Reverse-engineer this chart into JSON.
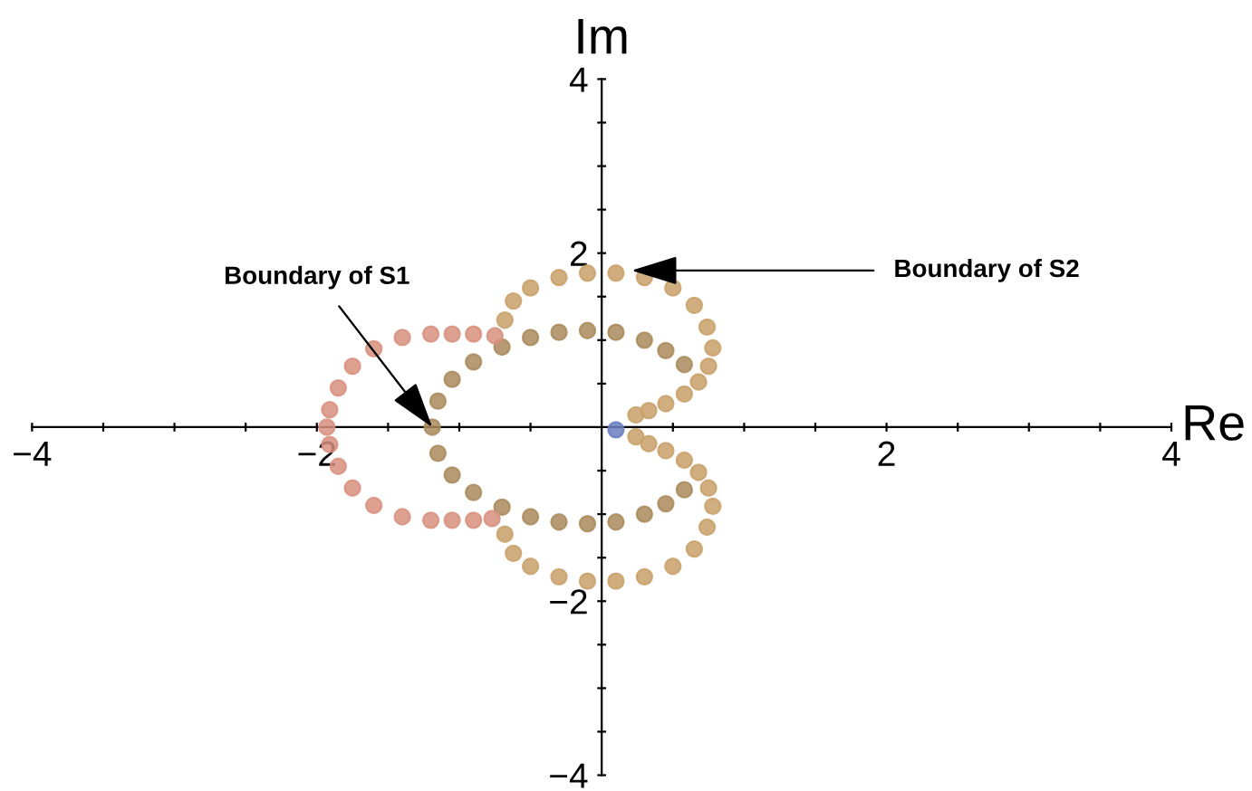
{
  "chart_data": {
    "type": "scatter",
    "xlabel": "Re",
    "ylabel": "Im",
    "xlim": [
      -4,
      4
    ],
    "ylim": [
      -4,
      4
    ],
    "xticks": [
      {
        "value": -4,
        "label": "−4"
      },
      {
        "value": -3.5,
        "label": null
      },
      {
        "value": -3,
        "label": null
      },
      {
        "value": -2.5,
        "label": null
      },
      {
        "value": -2,
        "label": "−2"
      },
      {
        "value": -1.5,
        "label": null
      },
      {
        "value": -1,
        "label": null
      },
      {
        "value": -0.5,
        "label": null
      },
      {
        "value": 0.5,
        "label": null
      },
      {
        "value": 1,
        "label": null
      },
      {
        "value": 1.5,
        "label": null
      },
      {
        "value": 2,
        "label": "2"
      },
      {
        "value": 2.5,
        "label": null
      },
      {
        "value": 3,
        "label": null
      },
      {
        "value": 3.5,
        "label": null
      },
      {
        "value": 4,
        "label": "4"
      }
    ],
    "yticks": [
      {
        "value": -4,
        "label": "−4"
      },
      {
        "value": -3.5,
        "label": null
      },
      {
        "value": -3,
        "label": null
      },
      {
        "value": -2.5,
        "label": null
      },
      {
        "value": -2,
        "label": "−2"
      },
      {
        "value": -1.5,
        "label": null
      },
      {
        "value": -1,
        "label": null
      },
      {
        "value": -0.5,
        "label": null
      },
      {
        "value": 0.5,
        "label": null
      },
      {
        "value": 1,
        "label": null
      },
      {
        "value": 1.5,
        "label": null
      },
      {
        "value": 2,
        "label": "2"
      },
      {
        "value": 2.5,
        "label": null
      },
      {
        "value": 3,
        "label": null
      },
      {
        "value": 3.5,
        "label": null
      },
      {
        "value": 4,
        "label": "4"
      }
    ],
    "grid": false,
    "marker": "circle",
    "series": [
      {
        "color": "#a9895c",
        "x": [
          -1.19,
          -1.15,
          -1.05,
          -0.9,
          -0.7,
          -0.5,
          -0.3,
          -0.1,
          0.1,
          0.3,
          0.45,
          0.58,
          0.58,
          0.45,
          0.3,
          0.1,
          -0.1,
          -0.3,
          -0.5,
          -0.7,
          -0.9,
          -1.05,
          -1.15
        ],
        "values": [
          0,
          0.3,
          0.55,
          0.75,
          0.92,
          1.03,
          1.09,
          1.11,
          1.09,
          1.0,
          0.88,
          0.72,
          -0.72,
          -0.88,
          -1.0,
          -1.09,
          -1.11,
          -1.09,
          -1.03,
          -0.92,
          -0.75,
          -0.55,
          -0.3
        ]
      },
      {
        "color": "#d8907e",
        "x": [
          -0.75,
          -0.9,
          -1.05,
          -1.2,
          -1.4,
          -1.6,
          -1.75,
          -1.85,
          -1.91,
          -1.93,
          -1.91,
          -1.85,
          -1.75,
          -1.6,
          -1.4,
          -1.2,
          -1.05,
          -0.9,
          -0.77
        ],
        "values": [
          1.05,
          1.07,
          1.07,
          1.07,
          1.03,
          0.9,
          0.7,
          0.45,
          0.2,
          0,
          -0.2,
          -0.45,
          -0.7,
          -0.9,
          -1.03,
          -1.07,
          -1.07,
          -1.07,
          -1.05
        ]
      },
      {
        "color": "#c9a06a",
        "x": [
          -0.68,
          -0.62,
          -0.5,
          -0.3,
          -0.1,
          0.1,
          0.3,
          0.5,
          0.65,
          0.74,
          0.78,
          0.75,
          0.68,
          0.58,
          0.45,
          0.33,
          0.24
        ],
        "values": [
          1.23,
          1.45,
          1.6,
          1.72,
          1.77,
          1.77,
          1.72,
          1.6,
          1.4,
          1.15,
          0.91,
          0.7,
          0.52,
          0.38,
          0.27,
          0.19,
          0.14
        ]
      },
      {
        "color": "#c9a06a",
        "x": [
          0.24,
          0.33,
          0.45,
          0.58,
          0.68,
          0.75,
          0.78,
          0.74,
          0.65,
          0.5,
          0.3,
          0.1,
          -0.1,
          -0.3,
          -0.5,
          -0.62,
          -0.68
        ],
        "values": [
          -0.11,
          -0.19,
          -0.27,
          -0.38,
          -0.52,
          -0.7,
          -0.91,
          -1.15,
          -1.4,
          -1.6,
          -1.72,
          -1.77,
          -1.77,
          -1.72,
          -1.6,
          -1.45,
          -1.23
        ]
      },
      {
        "color": "#6a7fc0",
        "x": [
          0.1
        ],
        "values": [
          -0.03
        ]
      }
    ],
    "annotations": [
      {
        "text": "Boundary of S1",
        "x": -1.19,
        "y": 0
      },
      {
        "text": "Boundary of S2",
        "x": 0.21,
        "y": 1.8
      }
    ]
  }
}
